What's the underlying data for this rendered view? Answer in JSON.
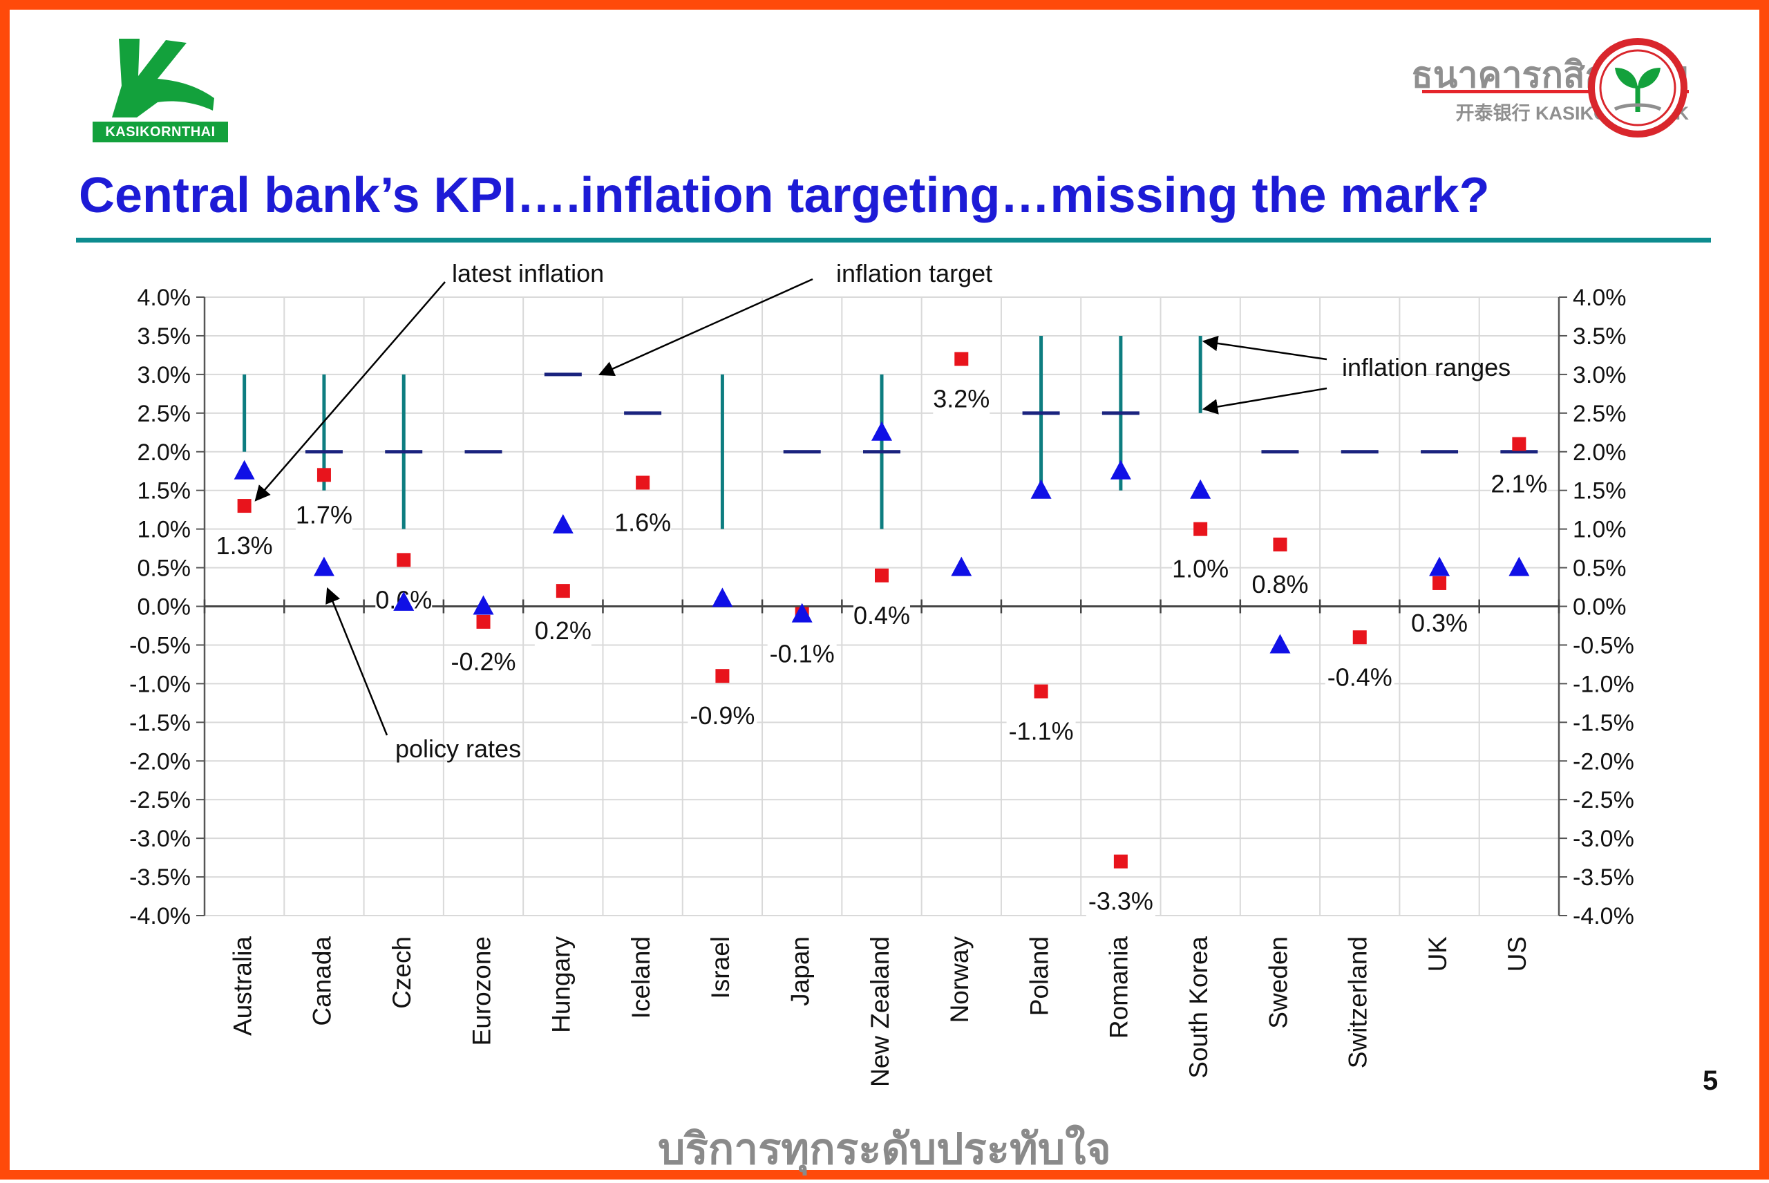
{
  "header": {
    "logo_left_text": "KASIKORNTHAI",
    "brand_thai": "ธนาคารกสิกรไทย",
    "brand_english": "开泰银行 KASIKORNBANK",
    "seal_icon": "kasikornbank-rice-sprout-seal"
  },
  "title": "Central bank’s KPI….inflation targeting…missing the mark?",
  "page_number": "5",
  "footer_thai": "บริการทุกระดับประทับใจ",
  "colors": {
    "frame": "#ff4a0a",
    "title": "#1d1bd6",
    "rule": "#0d8c8f",
    "inflation_marker": "#e8141c",
    "policy_marker": "#1010e6",
    "target_line": "#1a237e",
    "range_line": "#0d7d80",
    "logo_green": "#13a13c"
  },
  "chart_data": {
    "type": "scatter",
    "title": "",
    "xlabel": "",
    "ylabel": "",
    "ylim": [
      -4.0,
      4.0
    ],
    "ytick_step": 0.5,
    "yticks_left": [
      "4.0%",
      "3.5%",
      "3.0%",
      "2.5%",
      "2.0%",
      "1.5%",
      "1.0%",
      "0.5%",
      "0.0%",
      "-0.5%",
      "-1.0%",
      "-1.5%",
      "-2.0%",
      "-2.5%",
      "-3.0%",
      "-3.5%",
      "-4.0%"
    ],
    "yticks_right": [
      "4.0%",
      "3.5%",
      "3.0%",
      "2.5%",
      "2.0%",
      "1.5%",
      "1.0%",
      "0.5%",
      "0.0%",
      "-0.5%",
      "-1.0%",
      "-1.5%",
      "-2.0%",
      "-2.5%",
      "-3.0%",
      "-3.5%",
      "-4.0%"
    ],
    "grid": true,
    "categories": [
      "Australia",
      "Canada",
      "Czech",
      "Eurozone",
      "Hungary",
      "Iceland",
      "Israel",
      "Japan",
      "New Zealand",
      "Norway",
      "Poland",
      "Romania",
      "South Korea",
      "Sweden",
      "Switzerland",
      "UK",
      "US"
    ],
    "series": [
      {
        "name": "latest inflation",
        "marker": "square",
        "values": [
          1.3,
          1.7,
          0.6,
          -0.2,
          0.2,
          1.6,
          -0.9,
          -0.1,
          0.4,
          3.2,
          -1.1,
          -3.3,
          1.0,
          0.8,
          -0.4,
          0.3,
          2.1
        ],
        "labels": [
          "1.3%",
          "1.7%",
          "0.6%",
          "-0.2%",
          "0.2%",
          "1.6%",
          "-0.9%",
          "-0.1%",
          "0.4%",
          "3.2%",
          "-1.1%",
          "-3.3%",
          "1.0%",
          "0.8%",
          "-0.4%",
          "0.3%",
          "2.1%"
        ]
      },
      {
        "name": "policy rates",
        "marker": "triangle",
        "values": [
          1.75,
          0.5,
          0.05,
          0.0,
          1.05,
          null,
          0.1,
          -0.1,
          2.25,
          0.5,
          1.5,
          1.75,
          1.5,
          -0.5,
          null,
          0.5,
          0.5
        ]
      },
      {
        "name": "inflation target",
        "marker": "dash",
        "values": [
          null,
          2.0,
          2.0,
          2.0,
          3.0,
          2.5,
          null,
          2.0,
          2.0,
          null,
          2.5,
          2.5,
          null,
          2.0,
          2.0,
          2.0,
          2.0
        ]
      },
      {
        "name": "inflation ranges",
        "marker": "vertical-bar",
        "ranges": [
          [
            2.0,
            3.0
          ],
          [
            1.5,
            3.0
          ],
          [
            1.0,
            3.0
          ],
          null,
          null,
          null,
          [
            1.0,
            3.0
          ],
          null,
          [
            1.0,
            3.0
          ],
          null,
          [
            1.5,
            3.5
          ],
          [
            1.5,
            3.5
          ],
          [
            2.5,
            3.5
          ],
          null,
          null,
          null,
          null
        ]
      }
    ],
    "annotations": [
      {
        "text": "latest inflation"
      },
      {
        "text": "inflation target"
      },
      {
        "text": "inflation ranges"
      },
      {
        "text": "policy rates"
      }
    ]
  }
}
